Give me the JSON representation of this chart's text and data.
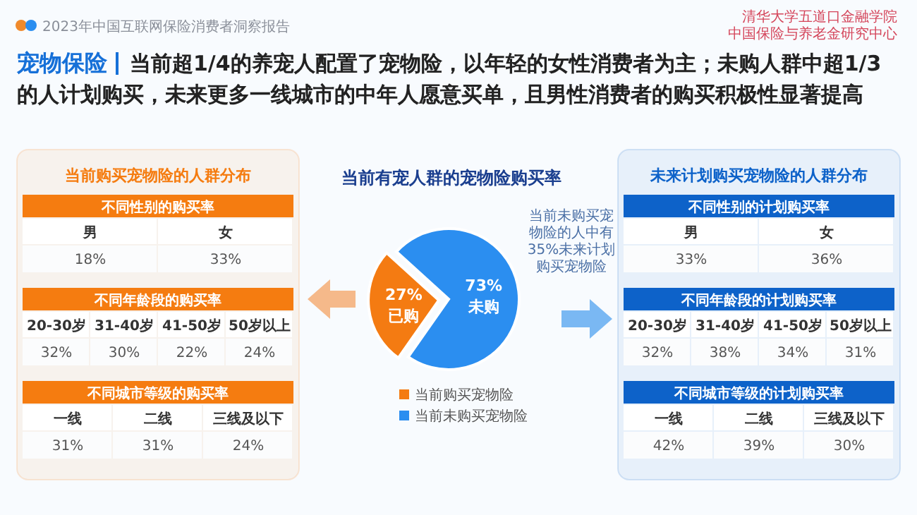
{
  "chart_data": [
    {
      "type": "other",
      "title": "宠物保险",
      "subtitle": "当前超1/4的养宠人配置了宠物险，以年轻的女性消费者为主；未购人群中超1/3的人计划购买，未来更多一线城市的中年人愿意买单，且男性消费者的购买积极性显著提高",
      "annotations": [
        "2023年中国互联网保险消费者洞察报告",
        "清华大学五道口金融学院",
        "中国保险与养老金研究中心"
      ]
    },
    {
      "type": "other",
      "title": "当前购买宠物险的人群分布"
    },
    {
      "type": "other",
      "title": "不同性别的购买率",
      "color": "#f57c10",
      "categories": [
        "男",
        "女"
      ],
      "value_labels": [
        "18%",
        "33%"
      ]
    },
    {
      "type": "other",
      "title": "不同年龄段的购买率",
      "color": "#f57c10",
      "categories": [
        "20-30岁",
        "31-40岁",
        "41-50岁",
        "50岁以上"
      ],
      "value_labels": [
        "32%",
        "30%",
        "22%",
        "24%"
      ]
    },
    {
      "type": "other",
      "title": "不同城市等级的购买率",
      "color": "#f57c10",
      "categories": [
        "一线",
        "二线",
        "三线及以下"
      ],
      "value_labels": [
        "31%",
        "31%",
        "24%"
      ]
    },
    {
      "type": "pie",
      "title": "当前有宠人群的宠物险购买率",
      "categories": [
        "当前购买宠物险",
        "当前未购买宠物险"
      ],
      "values": [
        27,
        73
      ],
      "colors": [
        "#f47b12",
        "#2b8ef0"
      ],
      "value_labels": [
        "27%\n已购",
        "73%\n未购"
      ],
      "legend": "bottom",
      "annotations": [
        "当前未购买宠物险的人中有35%未来计划购买宠物险"
      ]
    },
    {
      "type": "other",
      "title": "未来计划购买宠物险的人群分布"
    },
    {
      "type": "other",
      "title": "不同性别的计划购买率",
      "color": "#0d62c9",
      "categories": [
        "男",
        "女"
      ],
      "value_labels": [
        "33%",
        "36%"
      ]
    },
    {
      "type": "other",
      "title": "不同年龄段的计划购买率",
      "color": "#0d62c9",
      "categories": [
        "20-30岁",
        "31-40岁",
        "41-50岁",
        "50岁以上"
      ],
      "value_labels": [
        "32%",
        "38%",
        "34%",
        "31%"
      ]
    },
    {
      "type": "other",
      "title": "不同城市等级的计划购买率",
      "color": "#0d62c9",
      "categories": [
        "一线",
        "二线",
        "三线及以下"
      ],
      "value_labels": [
        "42%",
        "39%",
        "30%"
      ]
    }
  ]
}
